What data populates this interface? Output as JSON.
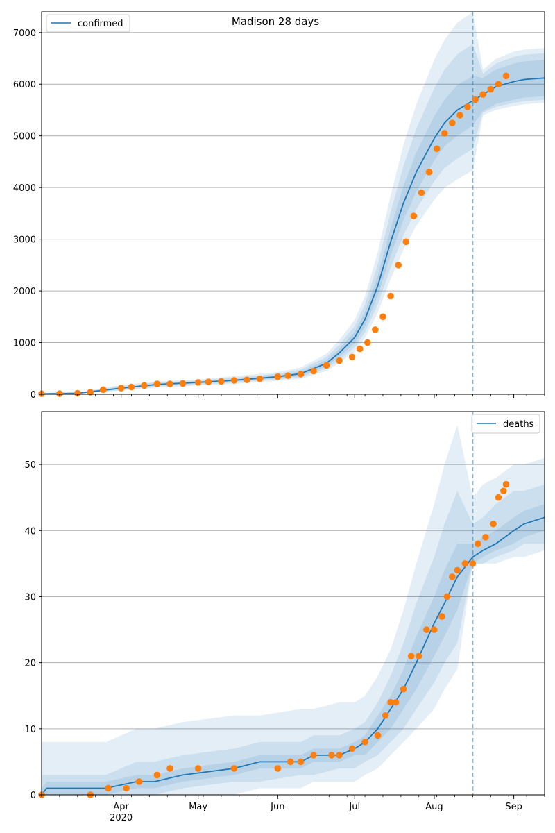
{
  "figure": {
    "title": "Madison 28 days"
  },
  "colors": {
    "model": "#1f77b4",
    "observed": "#ff7f0e",
    "band": "#1f77b4",
    "grid": "#b0b0b0",
    "axis": "#000000"
  },
  "chart_data": [
    {
      "type": "line",
      "panel": "top",
      "title": "Madison 28 days",
      "legend": {
        "label": "confirmed",
        "placement": "top-left"
      },
      "xlim": [
        "2020-03-01",
        "2020-09-13"
      ],
      "ylim": [
        0,
        7400
      ],
      "yticks": [
        0,
        1000,
        2000,
        3000,
        4000,
        5000,
        6000,
        7000
      ],
      "grid": "y",
      "forecast_start": "2020-08-16",
      "model": {
        "x": [
          "2020-03-01",
          "2020-03-15",
          "2020-04-01",
          "2020-04-15",
          "2020-05-01",
          "2020-05-15",
          "2020-06-01",
          "2020-06-10",
          "2020-06-20",
          "2020-06-25",
          "2020-07-01",
          "2020-07-05",
          "2020-07-10",
          "2020-07-15",
          "2020-07-20",
          "2020-07-25",
          "2020-08-01",
          "2020-08-05",
          "2020-08-10",
          "2020-08-16",
          "2020-08-20",
          "2020-08-25",
          "2020-09-01",
          "2020-09-05",
          "2020-09-13"
        ],
        "y": [
          10,
          20,
          120,
          190,
          230,
          270,
          340,
          400,
          600,
          800,
          1100,
          1450,
          2100,
          2950,
          3700,
          4300,
          4950,
          5250,
          5500,
          5680,
          5800,
          5950,
          6050,
          6090,
          6120
        ],
        "bands": [
          {
            "lower": [
              5,
              15,
              100,
              170,
              210,
              245,
              310,
              360,
              540,
              720,
              990,
              1310,
              1900,
              2680,
              3370,
              3920,
              4520,
              4800,
              5000,
              5200,
              5480,
              5620,
              5700,
              5740,
              5770
            ],
            "upper": [
              15,
              25,
              140,
              210,
              250,
              295,
              370,
              440,
              660,
              880,
              1210,
              1590,
              2300,
              3220,
              4030,
              4680,
              5380,
              5700,
              5980,
              6160,
              6120,
              6280,
              6400,
              6440,
              6470
            ]
          },
          {
            "lower": [
              2,
              12,
              85,
              150,
              190,
              225,
              285,
              330,
              500,
              660,
              910,
              1200,
              1740,
              2450,
              3080,
              3580,
              4120,
              4380,
              4560,
              4750,
              5450,
              5560,
              5640,
              5670,
              5700
            ],
            "upper": [
              20,
              30,
              160,
              230,
              270,
              320,
              400,
              480,
              720,
              960,
              1320,
              1740,
              2520,
              3530,
              4420,
              5140,
              5920,
              6280,
              6580,
              6780,
              6200,
              6400,
              6530,
              6570,
              6600
            ]
          },
          {
            "lower": [
              0,
              10,
              70,
              130,
              170,
              200,
              260,
              300,
              450,
              600,
              830,
              1090,
              1580,
              2230,
              2800,
              3260,
              3760,
              3990,
              4160,
              4330,
              5400,
              5500,
              5580,
              5610,
              5640
            ],
            "upper": [
              30,
              40,
              180,
              250,
              290,
              350,
              430,
              520,
              780,
              1050,
              1440,
              1900,
              2750,
              3850,
              4830,
              5610,
              6470,
              6860,
              7190,
              7400,
              6280,
              6490,
              6630,
              6670,
              6700
            ]
          }
        ]
      },
      "observed": {
        "x": [
          "2020-03-01",
          "2020-03-08",
          "2020-03-15",
          "2020-03-20",
          "2020-03-25",
          "2020-04-01",
          "2020-04-05",
          "2020-04-10",
          "2020-04-15",
          "2020-04-20",
          "2020-04-25",
          "2020-05-01",
          "2020-05-05",
          "2020-05-10",
          "2020-05-15",
          "2020-05-20",
          "2020-05-25",
          "2020-06-01",
          "2020-06-05",
          "2020-06-10",
          "2020-06-15",
          "2020-06-20",
          "2020-06-25",
          "2020-06-30",
          "2020-07-03",
          "2020-07-06",
          "2020-07-09",
          "2020-07-12",
          "2020-07-15",
          "2020-07-18",
          "2020-07-21",
          "2020-07-24",
          "2020-07-27",
          "2020-07-30",
          "2020-08-02",
          "2020-08-05",
          "2020-08-08",
          "2020-08-11",
          "2020-08-14",
          "2020-08-17",
          "2020-08-20",
          "2020-08-23",
          "2020-08-26",
          "2020-08-29"
        ],
        "y": [
          10,
          12,
          20,
          40,
          90,
          120,
          140,
          170,
          200,
          200,
          210,
          230,
          240,
          250,
          270,
          280,
          300,
          340,
          360,
          390,
          450,
          560,
          650,
          720,
          880,
          1000,
          1250,
          1500,
          1900,
          2500,
          2950,
          3450,
          3900,
          4300,
          4750,
          5050,
          5250,
          5400,
          5560,
          5700,
          5800,
          5900,
          6000,
          6160
        ]
      }
    },
    {
      "type": "line",
      "panel": "bottom",
      "legend": {
        "label": "deaths",
        "placement": "top-right"
      },
      "xlim": [
        "2020-03-01",
        "2020-09-13"
      ],
      "ylim": [
        0,
        58
      ],
      "yticks": [
        0,
        10,
        20,
        30,
        40,
        50
      ],
      "grid": "y",
      "xticks_major": [
        {
          "date": "2020-04-01",
          "label": "Apr",
          "sublabel": "2020"
        },
        {
          "date": "2020-05-01",
          "label": "May"
        },
        {
          "date": "2020-06-01",
          "label": "Jun"
        },
        {
          "date": "2020-07-01",
          "label": "Jul"
        },
        {
          "date": "2020-08-01",
          "label": "Aug"
        },
        {
          "date": "2020-09-01",
          "label": "Sep"
        }
      ],
      "forecast_start": "2020-08-16",
      "model": {
        "x": [
          "2020-03-01",
          "2020-03-03",
          "2020-03-26",
          "2020-04-07",
          "2020-04-14",
          "2020-04-25",
          "2020-05-15",
          "2020-05-25",
          "2020-06-10",
          "2020-06-15",
          "2020-06-25",
          "2020-07-01",
          "2020-07-05",
          "2020-07-10",
          "2020-07-15",
          "2020-07-20",
          "2020-07-25",
          "2020-08-01",
          "2020-08-05",
          "2020-08-10",
          "2020-08-16",
          "2020-08-20",
          "2020-08-25",
          "2020-09-01",
          "2020-09-05",
          "2020-09-13"
        ],
        "y": [
          0,
          1,
          1,
          2,
          2,
          3,
          4,
          5,
          5,
          6,
          6,
          7,
          8,
          10,
          13,
          16,
          20,
          26,
          29,
          33,
          36,
          37,
          38,
          40,
          41,
          42
        ],
        "bands": [
          {
            "lower": [
              0,
              0,
              0,
              1,
              1,
              2,
              3,
              4,
              4,
              5,
              5,
              6,
              6,
              8,
              10,
              13,
              16,
              21,
              24,
              28,
              35,
              36,
              37,
              38,
              39,
              40
            ],
            "upper": [
              1,
              2,
              2,
              3,
              3,
              4,
              5,
              6,
              6,
              7,
              7,
              8,
              9,
              12,
              15,
              19,
              24,
              30,
              34,
              38,
              38,
              39,
              40,
              42,
              43,
              44
            ]
          },
          {
            "lower": [
              0,
              0,
              0,
              0,
              0,
              1,
              2,
              2,
              3,
              3,
              4,
              4,
              5,
              6,
              8,
              10,
              13,
              17,
              20,
              23,
              35,
              35,
              36,
              37,
              38,
              38
            ],
            "upper": [
              3,
              3,
              3,
              5,
              5,
              6,
              7,
              8,
              8,
              9,
              9,
              10,
              11,
              14,
              18,
              23,
              29,
              36,
              41,
              46,
              41,
              42,
              44,
              46,
              46,
              47
            ]
          },
          {
            "lower": [
              0,
              0,
              0,
              0,
              0,
              0,
              0,
              1,
              1,
              2,
              2,
              2,
              3,
              4,
              6,
              8,
              10,
              13,
              16,
              19,
              35,
              35,
              35,
              36,
              36,
              37
            ],
            "upper": [
              8,
              8,
              8,
              10,
              10,
              11,
              12,
              12,
              13,
              13,
              14,
              14,
              15,
              18,
              22,
              28,
              35,
              44,
              50,
              56,
              45,
              47,
              48,
              50,
              50,
              51
            ]
          }
        ]
      },
      "observed": {
        "x": [
          "2020-03-01",
          "2020-03-20",
          "2020-03-27",
          "2020-04-03",
          "2020-04-08",
          "2020-04-15",
          "2020-04-20",
          "2020-05-01",
          "2020-05-15",
          "2020-06-01",
          "2020-06-06",
          "2020-06-10",
          "2020-06-15",
          "2020-06-22",
          "2020-06-25",
          "2020-06-30",
          "2020-07-05",
          "2020-07-10",
          "2020-07-13",
          "2020-07-15",
          "2020-07-17",
          "2020-07-20",
          "2020-07-23",
          "2020-07-26",
          "2020-07-29",
          "2020-08-01",
          "2020-08-04",
          "2020-08-06",
          "2020-08-08",
          "2020-08-10",
          "2020-08-13",
          "2020-08-16",
          "2020-08-18",
          "2020-08-21",
          "2020-08-24",
          "2020-08-26",
          "2020-08-28",
          "2020-08-29"
        ],
        "y": [
          0,
          0,
          1,
          1,
          2,
          3,
          4,
          4,
          4,
          4,
          5,
          5,
          6,
          6,
          6,
          7,
          8,
          9,
          12,
          14,
          14,
          16,
          21,
          21,
          25,
          25,
          27,
          30,
          33,
          34,
          35,
          35,
          38,
          39,
          41,
          45,
          46,
          47
        ]
      }
    }
  ]
}
